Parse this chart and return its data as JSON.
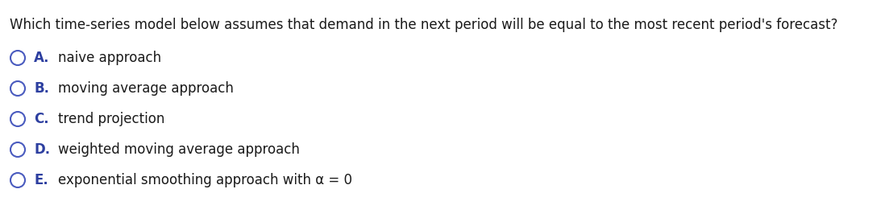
{
  "question": "Which time-series model below assumes that demand in the next period will be equal to the most recent period's forecast?",
  "options": [
    {
      "letter": "A.",
      "text": "naive approach"
    },
    {
      "letter": "B.",
      "text": "moving average approach"
    },
    {
      "letter": "C.",
      "text": "trend projection"
    },
    {
      "letter": "D.",
      "text": "weighted moving average approach"
    },
    {
      "letter": "E.",
      "text": "exponential smoothing approach with α = 0"
    }
  ],
  "question_color": "#1a1a1a",
  "option_letter_color": "#2d3fa0",
  "option_text_color": "#1a1a1a",
  "circle_color": "#4a5bbf",
  "background_color": "#ffffff",
  "question_fontsize": 12,
  "option_fontsize": 12,
  "fig_width": 10.93,
  "fig_height": 2.76,
  "dpi": 100
}
